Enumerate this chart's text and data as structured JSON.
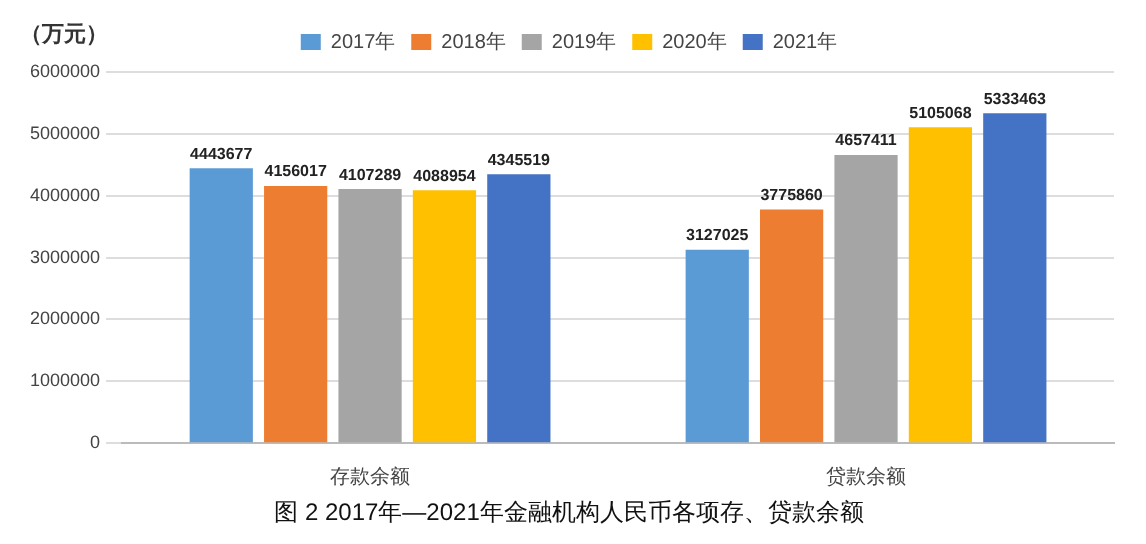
{
  "chart_data": {
    "type": "bar",
    "title": "图 2 2017年—2021年金融机构人民币各项存、贷款余额",
    "ylabel": "（万元）",
    "categories": [
      "存款余额",
      "贷款余额"
    ],
    "series": [
      {
        "name": "2017年",
        "color": "#5b9bd5",
        "values": [
          4443677,
          3127025
        ]
      },
      {
        "name": "2018年",
        "color": "#ed7d31",
        "values": [
          4156017,
          3775860
        ]
      },
      {
        "name": "2019年",
        "color": "#a5a5a5",
        "values": [
          4107289,
          4657411
        ]
      },
      {
        "name": "2020年",
        "color": "#ffc000",
        "values": [
          4088954,
          5105068
        ]
      },
      {
        "name": "2021年",
        "color": "#4472c4",
        "values": [
          4345519,
          5333463
        ]
      }
    ],
    "ylim": [
      0,
      6000000
    ],
    "yticks": [
      0,
      1000000,
      2000000,
      3000000,
      4000000,
      5000000,
      6000000
    ],
    "grid": "y",
    "legend": "top",
    "data_labels": true
  }
}
